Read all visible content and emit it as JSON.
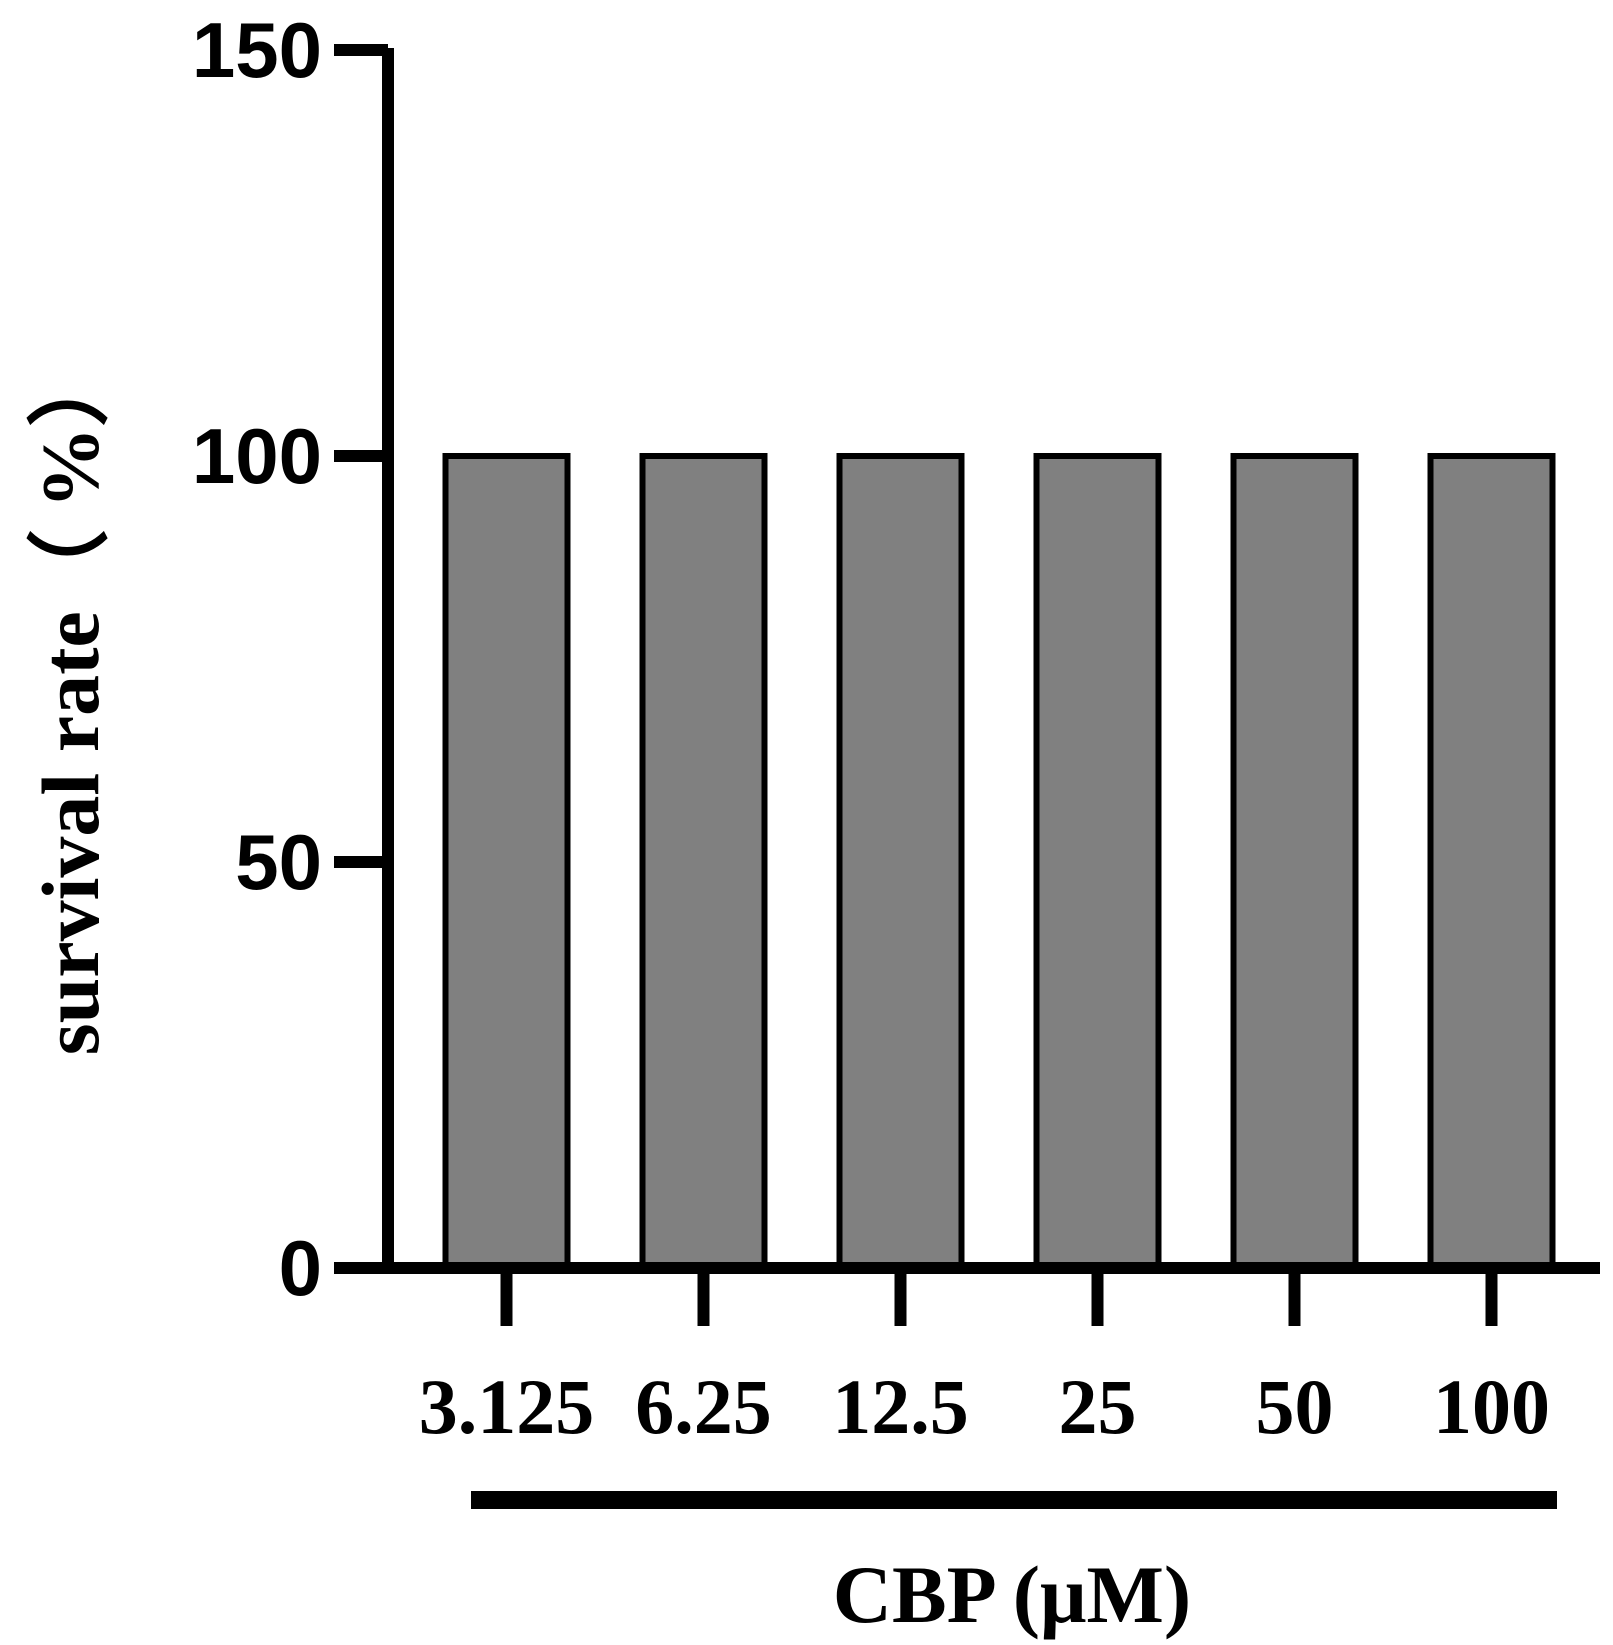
{
  "chart_data": {
    "type": "bar",
    "title": "",
    "categories": [
      "3.125",
      "6.25",
      "12.5",
      "25",
      "50",
      "100"
    ],
    "values": [
      100,
      100,
      100,
      100,
      100,
      100
    ],
    "ylabel": "survival rate（ %）",
    "xlabel": "CBP (μM)",
    "ylim": [
      0,
      150
    ],
    "yticks": [
      0,
      50,
      100,
      150
    ],
    "grid": false,
    "legend": "none",
    "bar_color": "#808080",
    "edge_color": "#000000"
  }
}
